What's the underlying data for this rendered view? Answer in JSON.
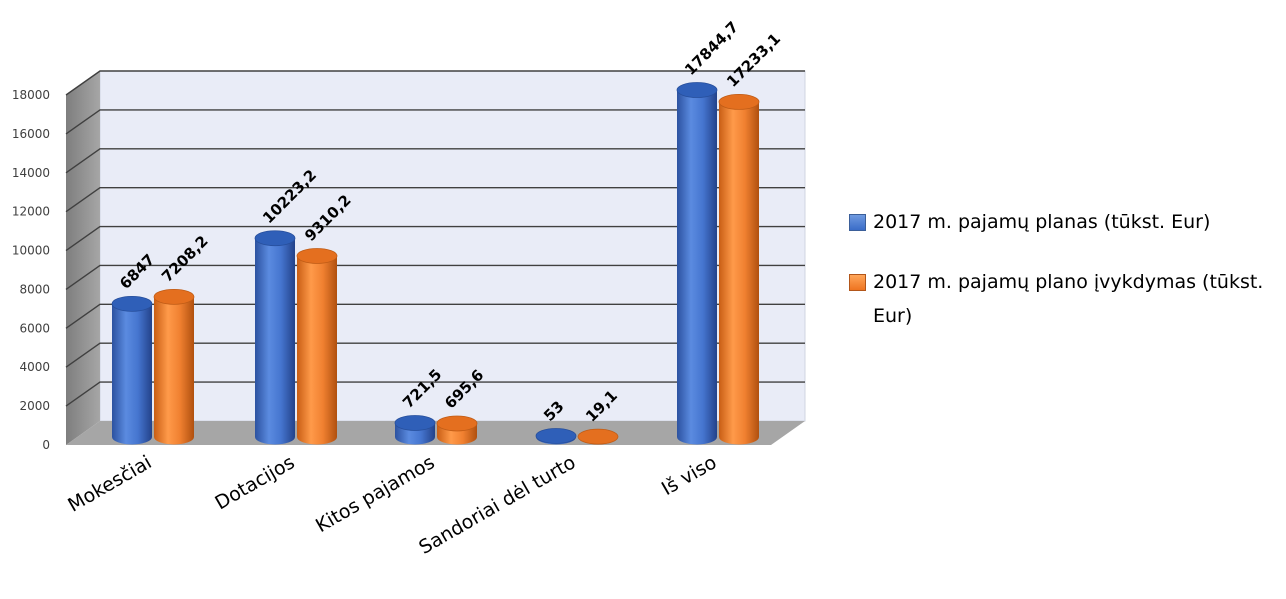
{
  "chart_data": {
    "type": "bar",
    "categories": [
      "Mokesčiai",
      "Dotacijos",
      "Kitos pajamos",
      "Sandoriai dėl turto",
      "Iš viso"
    ],
    "series": [
      {
        "name": "2017 m. pajamų planas (tūkst. Eur)",
        "values": [
          6847,
          10223.2,
          721.5,
          53,
          17844.7
        ],
        "labels": [
          "6847",
          "10223,2",
          "721,5",
          "53",
          "17844,7"
        ],
        "color": "#4472C4"
      },
      {
        "name": "2017 m. pajamų plano įvykdymas (tūkst. Eur)",
        "values": [
          7208.2,
          9310.2,
          695.6,
          19.1,
          17233.1
        ],
        "labels": [
          "7208,2",
          "9310,2",
          "695,6",
          "19,1",
          "17233,1"
        ],
        "color": "#ED7D31"
      }
    ],
    "yticks": [
      "0",
      "2000",
      "4000",
      "6000",
      "8000",
      "10000",
      "12000",
      "14000",
      "16000",
      "18000"
    ],
    "ylim": [
      0,
      18000
    ],
    "grid": true,
    "legend_position": "right",
    "style": "3d-cylinder"
  },
  "legend": {
    "items": [
      {
        "label": "2017 m. pajamų planas (tūkst. Eur)"
      },
      {
        "label": "2017 m. pajamų plano įvykdymas (tūkst. Eur)"
      }
    ]
  }
}
